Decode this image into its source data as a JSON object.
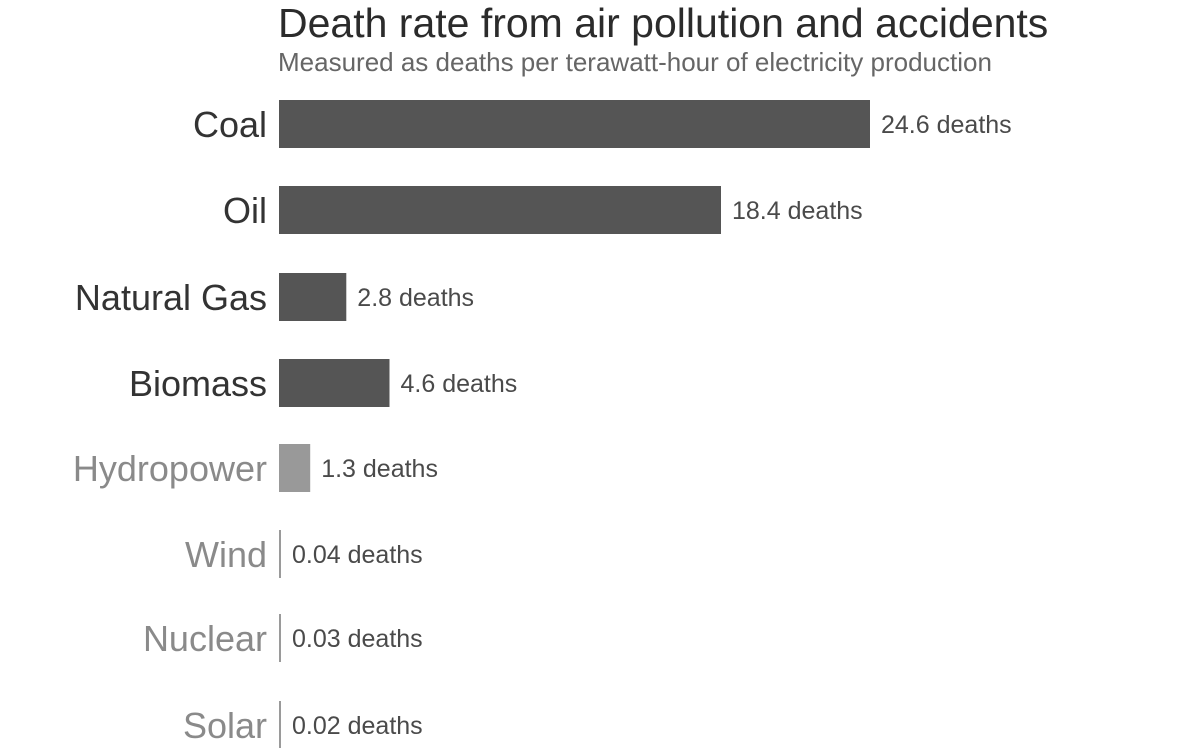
{
  "chart_data": {
    "type": "bar",
    "orientation": "horizontal",
    "title": "Death rate from air pollution and accidents",
    "subtitle": "Measured as deaths per terawatt-hour of electricity production",
    "categories": [
      "Coal",
      "Oil",
      "Natural Gas",
      "Biomass",
      "Hydropower",
      "Wind",
      "Nuclear",
      "Solar"
    ],
    "values": [
      24.6,
      18.4,
      2.8,
      4.6,
      1.3,
      0.04,
      0.03,
      0.02
    ],
    "value_labels": [
      "24.6 deaths",
      "18.4 deaths",
      "2.8 deaths",
      "4.6 deaths",
      "1.3 deaths",
      "0.04 deaths",
      "0.03 deaths",
      "0.02 deaths"
    ],
    "xlim": [
      0,
      24.6
    ],
    "grid": false,
    "legend": "none",
    "colors": {
      "fossil": "#555555",
      "low_carbon": "#999999",
      "fossil_label": "#333333",
      "low_carbon_label": "#8a8a8a"
    },
    "color_groups": [
      "fossil",
      "fossil",
      "fossil",
      "fossil",
      "low_carbon",
      "low_carbon",
      "low_carbon",
      "low_carbon"
    ]
  }
}
